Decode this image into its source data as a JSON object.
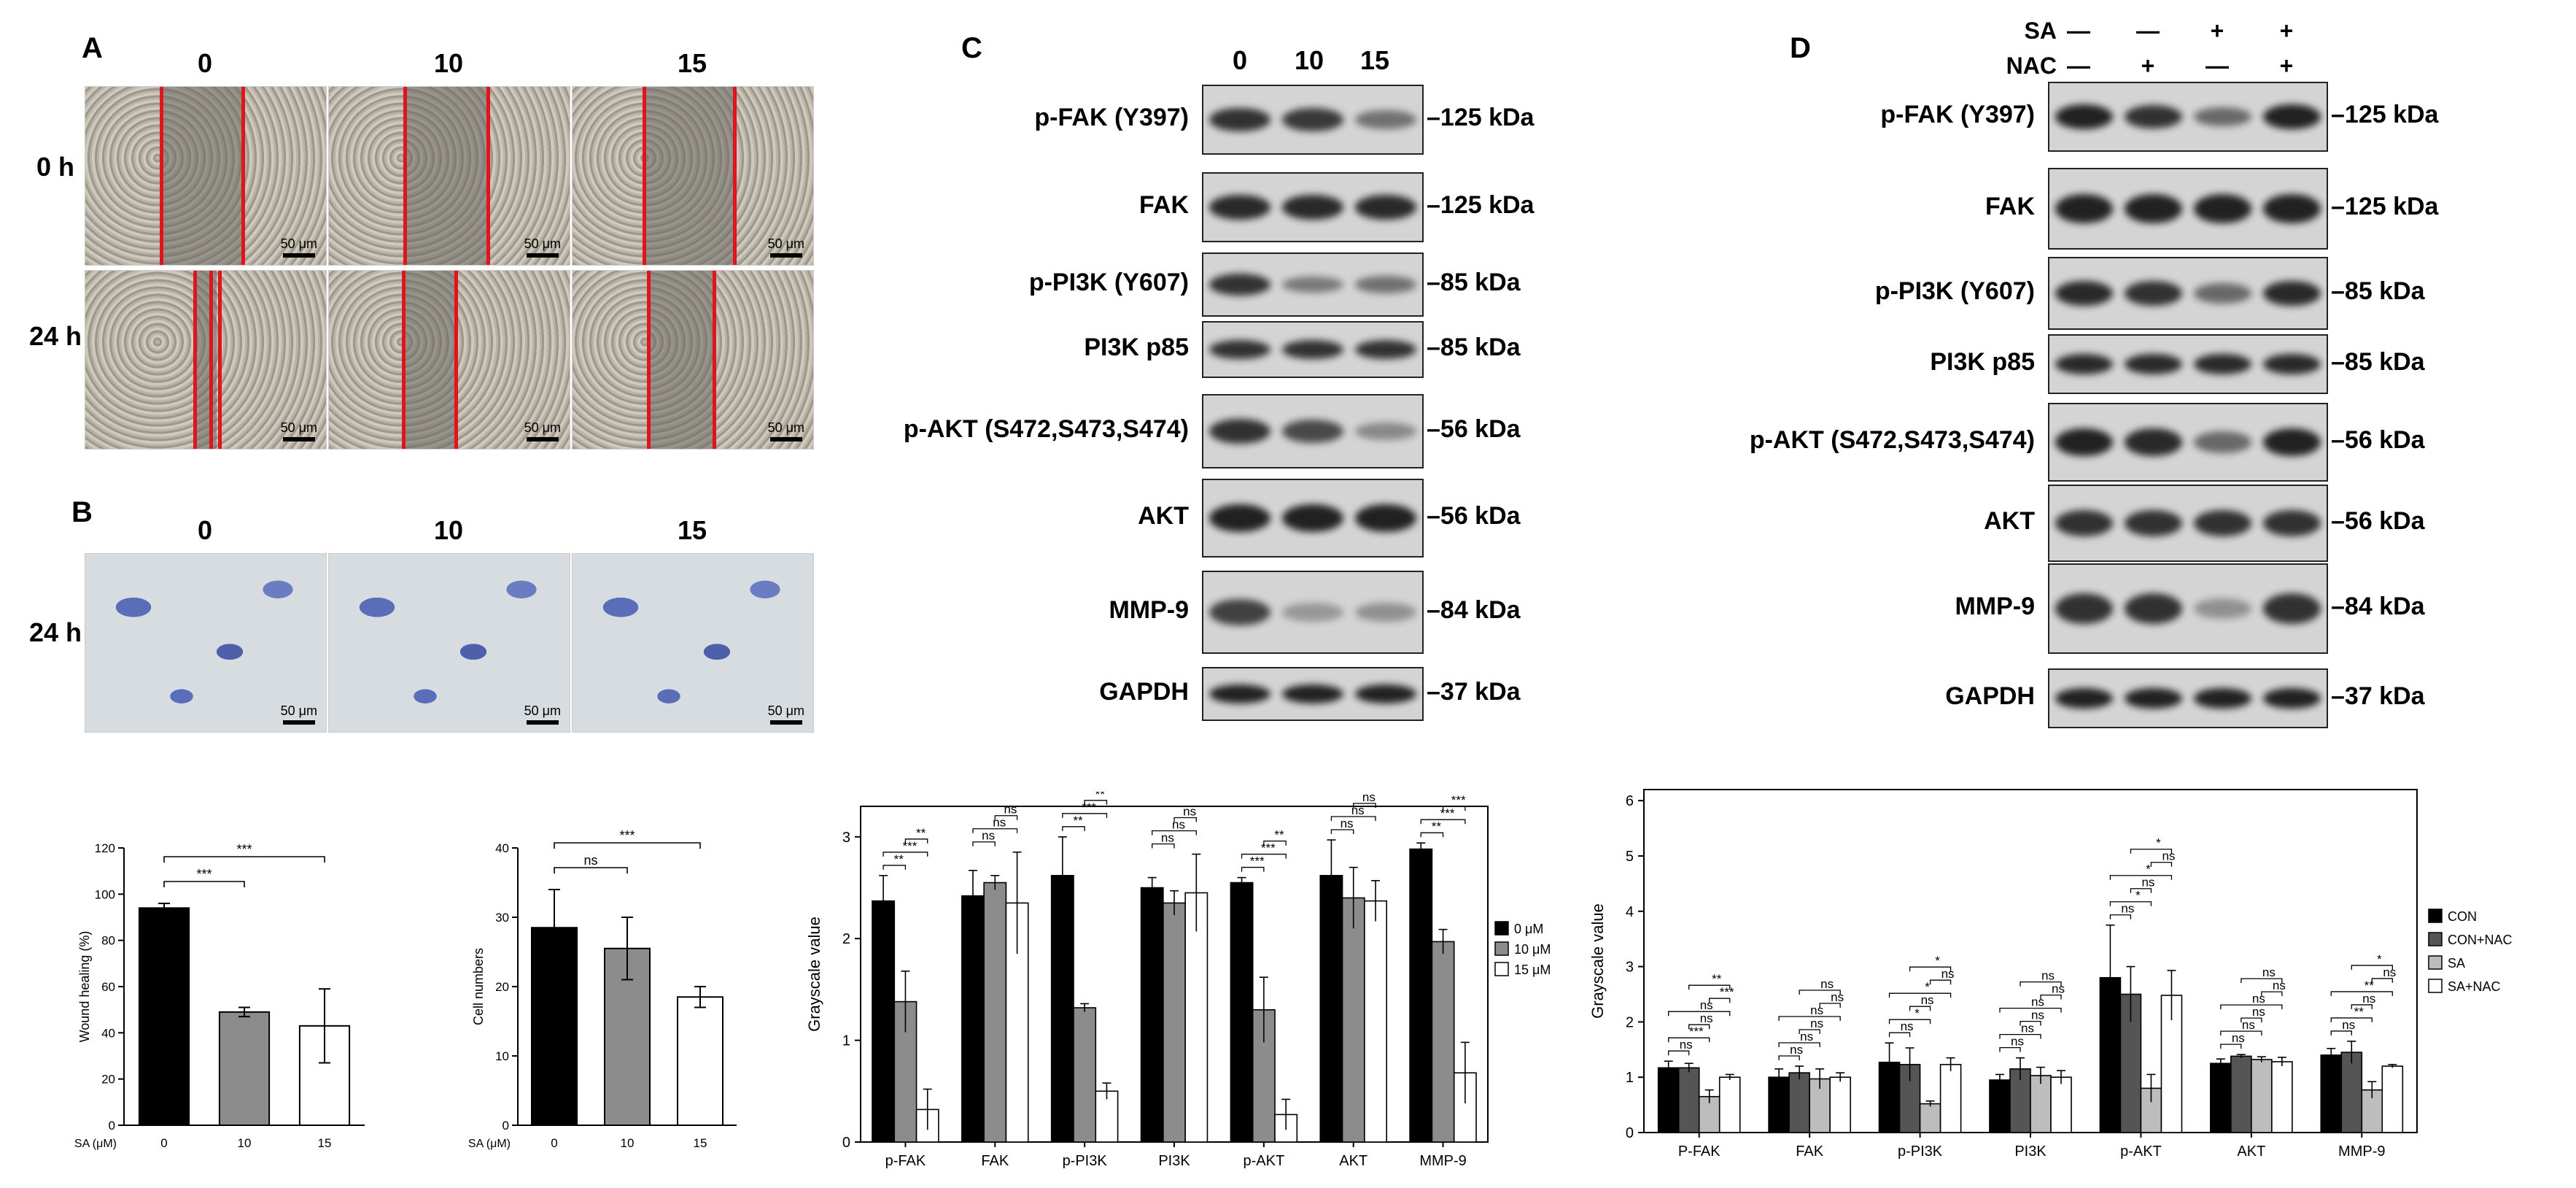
{
  "panels": {
    "A": "A",
    "B": "B",
    "C": "C",
    "D": "D"
  },
  "panel_a": {
    "doses": [
      "0",
      "10",
      "15"
    ],
    "rows": [
      "0 h",
      "24 h"
    ],
    "scale_bar": "50 μm"
  },
  "panel_b": {
    "doses": [
      "0",
      "10",
      "15"
    ],
    "row": "24 h",
    "scale_bar": "50 μm"
  },
  "panel_c": {
    "doses": [
      "0",
      "10",
      "15"
    ],
    "blots": [
      {
        "label": "p-FAK (Y397)",
        "kda": "125 kDa",
        "intensity": [
          0.85,
          0.8,
          0.45
        ]
      },
      {
        "label": "FAK",
        "kda": "125 kDa",
        "intensity": [
          0.9,
          0.9,
          0.9
        ]
      },
      {
        "label": "p-PI3K (Y607)",
        "kda": "85 kDa",
        "intensity": [
          0.85,
          0.4,
          0.45
        ]
      },
      {
        "label": "PI3K p85",
        "kda": "85 kDa",
        "intensity": [
          0.85,
          0.85,
          0.85
        ]
      },
      {
        "label": "p-AKT (S472,S473,S474)",
        "kda": "56 kDa",
        "intensity": [
          0.85,
          0.7,
          0.3
        ]
      },
      {
        "label": "AKT",
        "kda": "56 kDa",
        "intensity": [
          0.95,
          0.95,
          0.95
        ]
      },
      {
        "label": "MMP-9",
        "kda": "84 kDa",
        "intensity": [
          0.75,
          0.2,
          0.25
        ]
      },
      {
        "label": "GAPDH",
        "kda": "37 kDa",
        "intensity": [
          0.95,
          0.95,
          0.95
        ]
      }
    ]
  },
  "panel_d": {
    "sa_label": "SA",
    "nac_label": "NAC",
    "sa_signs": [
      "—",
      "—",
      "+",
      "+"
    ],
    "nac_signs": [
      "—",
      "+",
      "—",
      "+"
    ],
    "blots": [
      {
        "label": "p-FAK (Y397)",
        "kda": "125 kDa",
        "intensity": [
          0.95,
          0.85,
          0.5,
          0.95
        ]
      },
      {
        "label": "FAK",
        "kda": "125 kDa",
        "intensity": [
          0.95,
          0.95,
          0.95,
          0.95
        ]
      },
      {
        "label": "p-PI3K (Y607)",
        "kda": "85 kDa",
        "intensity": [
          0.9,
          0.85,
          0.5,
          0.9
        ]
      },
      {
        "label": "PI3K p85",
        "kda": "85 kDa",
        "intensity": [
          0.9,
          0.9,
          0.9,
          0.9
        ]
      },
      {
        "label": "p-AKT (S472,S473,S474)",
        "kda": "56 kDa",
        "intensity": [
          0.95,
          0.9,
          0.5,
          0.95
        ]
      },
      {
        "label": "AKT",
        "kda": "56 kDa",
        "intensity": [
          0.85,
          0.85,
          0.85,
          0.85
        ]
      },
      {
        "label": "MMP-9",
        "kda": "84 kDa",
        "intensity": [
          0.85,
          0.85,
          0.25,
          0.85
        ]
      },
      {
        "label": "GAPDH",
        "kda": "37 kDa",
        "intensity": [
          0.95,
          0.95,
          0.95,
          0.95
        ]
      }
    ]
  },
  "chart_data": [
    {
      "type": "bar",
      "categories": [
        "0",
        "10",
        "15"
      ],
      "values": [
        94,
        49,
        43
      ],
      "errors": [
        2,
        2,
        16
      ],
      "ylabel": "Wound healing (%)",
      "xaxis_prefix": "SA (μM)",
      "ylim": [
        0,
        120
      ],
      "ticks": [
        0,
        20,
        40,
        60,
        80,
        100,
        120
      ],
      "colors": [
        "#000000",
        "#8c8c8c",
        "#ffffff"
      ],
      "significance": [
        {
          "from": 0,
          "to": 1,
          "label": "***"
        },
        {
          "from": 0,
          "to": 2,
          "label": "***"
        }
      ]
    },
    {
      "type": "bar",
      "categories": [
        "0",
        "10",
        "15"
      ],
      "values": [
        28.5,
        25.5,
        18.5
      ],
      "errors": [
        5.5,
        4.5,
        1.5
      ],
      "ylabel": "Cell numbers",
      "xaxis_prefix": "SA (μM)",
      "ylim": [
        0,
        40
      ],
      "ticks": [
        0,
        10,
        20,
        30,
        40
      ],
      "colors": [
        "#000000",
        "#8c8c8c",
        "#ffffff"
      ],
      "significance": [
        {
          "from": 0,
          "to": 1,
          "label": "ns"
        },
        {
          "from": 0,
          "to": 2,
          "label": "***"
        }
      ]
    },
    {
      "type": "bar",
      "categories": [
        "p-FAK",
        "FAK",
        "p-PI3K",
        "PI3K",
        "p-AKT",
        "AKT",
        "MMP-9"
      ],
      "ylabel": "Grayscale value",
      "ylim": [
        0,
        3.3
      ],
      "ticks": [
        0,
        1,
        2,
        3
      ],
      "legend_position": "right",
      "series": [
        {
          "name": "0 μM",
          "color": "#000000",
          "values": [
            2.37,
            2.42,
            2.62,
            2.5,
            2.55,
            2.62,
            2.88
          ],
          "errors": [
            0.25,
            0.25,
            0.38,
            0.1,
            0.05,
            0.35,
            0.06
          ]
        },
        {
          "name": "10 μM",
          "color": "#8c8c8c",
          "values": [
            1.38,
            2.55,
            1.32,
            2.35,
            1.3,
            2.4,
            1.97
          ],
          "errors": [
            0.3,
            0.07,
            0.04,
            0.12,
            0.32,
            0.3,
            0.12
          ]
        },
        {
          "name": "15 μM",
          "color": "#ffffff",
          "values": [
            0.32,
            2.35,
            0.5,
            2.45,
            0.27,
            2.37,
            0.68
          ],
          "errors": [
            0.2,
            0.5,
            0.08,
            0.38,
            0.15,
            0.2,
            0.3
          ]
        }
      ],
      "significance": [
        [
          "**",
          "***",
          "**"
        ],
        [
          "ns",
          "ns",
          "ns"
        ],
        [
          "**",
          "***",
          "**"
        ],
        [
          "ns",
          "ns",
          "ns"
        ],
        [
          "***",
          "***",
          "**"
        ],
        [
          "ns",
          "ns",
          "ns"
        ],
        [
          "**",
          "***",
          "***"
        ]
      ]
    },
    {
      "type": "bar",
      "categories": [
        "P-FAK",
        "FAK",
        "p-PI3K",
        "PI3K",
        "p-AKT",
        "AKT",
        "MMP-9"
      ],
      "ylabel": "Grayscale value",
      "ylim": [
        0,
        6.2
      ],
      "ticks": [
        0,
        1,
        2,
        3,
        4,
        5,
        6
      ],
      "legend_position": "right",
      "series": [
        {
          "name": "CON",
          "color": "#000000",
          "values": [
            1.17,
            1.0,
            1.27,
            0.95,
            2.8,
            1.25,
            1.4
          ],
          "errors": [
            0.12,
            0.15,
            0.35,
            0.1,
            0.95,
            0.08,
            0.12
          ]
        },
        {
          "name": "CON+NAC",
          "color": "#555555",
          "values": [
            1.17,
            1.08,
            1.23,
            1.15,
            2.5,
            1.38,
            1.45
          ],
          "errors": [
            0.08,
            0.12,
            0.3,
            0.2,
            0.5,
            0.03,
            0.2
          ]
        },
        {
          "name": "SA",
          "color": "#bdbdbd",
          "values": [
            0.65,
            0.97,
            0.52,
            1.03,
            0.8,
            1.32,
            0.77
          ],
          "errors": [
            0.12,
            0.18,
            0.05,
            0.15,
            0.25,
            0.05,
            0.15
          ]
        },
        {
          "name": "SA+NAC",
          "color": "#ffffff",
          "values": [
            1.0,
            1.0,
            1.23,
            1.0,
            2.48,
            1.28,
            1.2
          ],
          "errors": [
            0.05,
            0.08,
            0.12,
            0.12,
            0.45,
            0.08,
            0.03
          ]
        }
      ],
      "significance": [
        [
          "ns",
          "***",
          "ns",
          "ns",
          "***",
          "**"
        ],
        [
          "ns",
          "ns",
          "ns",
          "ns",
          "ns",
          "ns"
        ],
        [
          "ns",
          "*",
          "ns",
          "*",
          "ns",
          "*"
        ],
        [
          "ns",
          "ns",
          "ns",
          "ns",
          "ns",
          "ns"
        ],
        [
          "ns",
          "*",
          "ns",
          "*",
          "ns",
          "*"
        ],
        [
          "ns",
          "ns",
          "ns",
          "ns",
          "ns",
          "ns"
        ],
        [
          "ns",
          "**",
          "ns",
          "**",
          "ns",
          "*"
        ]
      ]
    }
  ]
}
